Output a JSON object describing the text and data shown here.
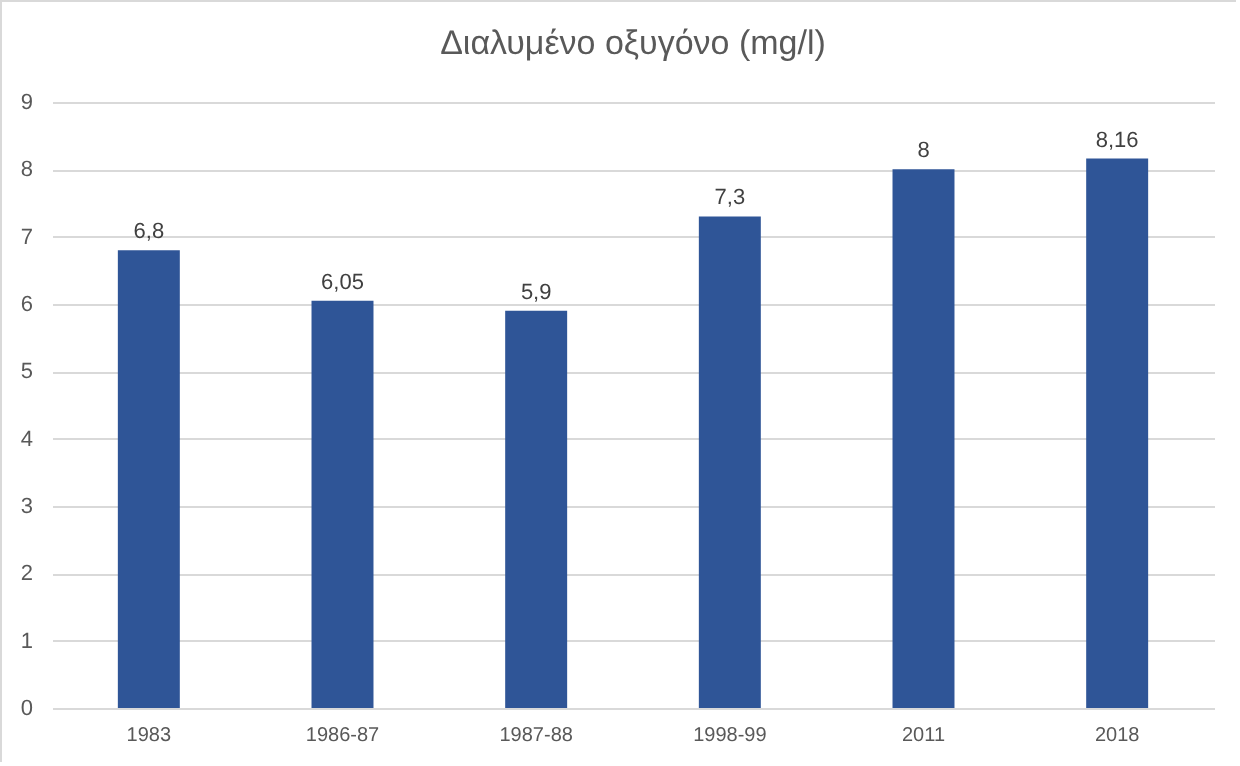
{
  "chart_data": {
    "type": "bar",
    "title": "Διαλυμένο οξυγόνο (mg/l)",
    "categories": [
      "1983",
      "1986-87",
      "1987-88",
      "1998-99",
      "2011",
      "2018"
    ],
    "values": [
      6.8,
      6.05,
      5.9,
      7.3,
      8,
      8.16
    ],
    "value_labels": [
      "6,8",
      "6,05",
      "5,9",
      "7,3",
      "8",
      "8,16"
    ],
    "color": "#2f5597",
    "ylim": [
      0,
      9
    ],
    "yticks": [
      0,
      1,
      2,
      3,
      4,
      5,
      6,
      7,
      8,
      9
    ],
    "grid": "y"
  }
}
